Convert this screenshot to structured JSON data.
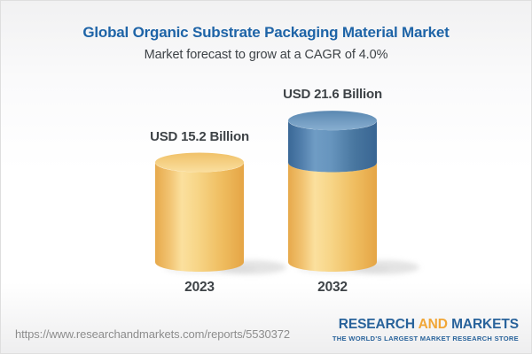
{
  "header": {
    "title": "Global Organic Substrate Packaging Material Market",
    "subtitle": "Market forecast to grow at a CAGR of 4.0%"
  },
  "chart_data": {
    "type": "bar",
    "subtype": "3d-cylinder",
    "title": "Global Organic Substrate Packaging Material Market",
    "subtitle": "Market forecast to grow at a CAGR of 4.0%",
    "unit": "USD Billion",
    "cagr_pct": 4.0,
    "categories": [
      "2023",
      "2032"
    ],
    "values": [
      15.2,
      21.6
    ],
    "value_labels": [
      "USD 15.2 Billion",
      "USD 21.6 Billion"
    ],
    "series": [
      {
        "name": "base-2023-size",
        "values": [
          15.2,
          15.2
        ],
        "color": "#F5CF80",
        "gradient_id": "yellow"
      },
      {
        "name": "growth-to-2032",
        "values": [
          0,
          6.4
        ],
        "color": "#5E8CB5",
        "gradient_id": "blue"
      }
    ],
    "ylim": [
      0,
      24
    ],
    "grid": false,
    "legend": "none"
  },
  "footer": {
    "url": "https://www.researchandmarkets.com/reports/5530372",
    "logo": {
      "part1": "RESEARCH",
      "part2": "AND",
      "part3": "MARKETS",
      "tagline": "THE WORLD'S LARGEST MARKET RESEARCH STORE"
    }
  },
  "colors": {
    "title_blue": "#1E64A7",
    "text_dark": "#3E4347",
    "url_gray": "#8D8D8D",
    "logo_blue": "#29639B",
    "logo_orange": "#F1A636",
    "bar_yellow": "#F5CF80",
    "bar_blue": "#5E8CB5"
  }
}
